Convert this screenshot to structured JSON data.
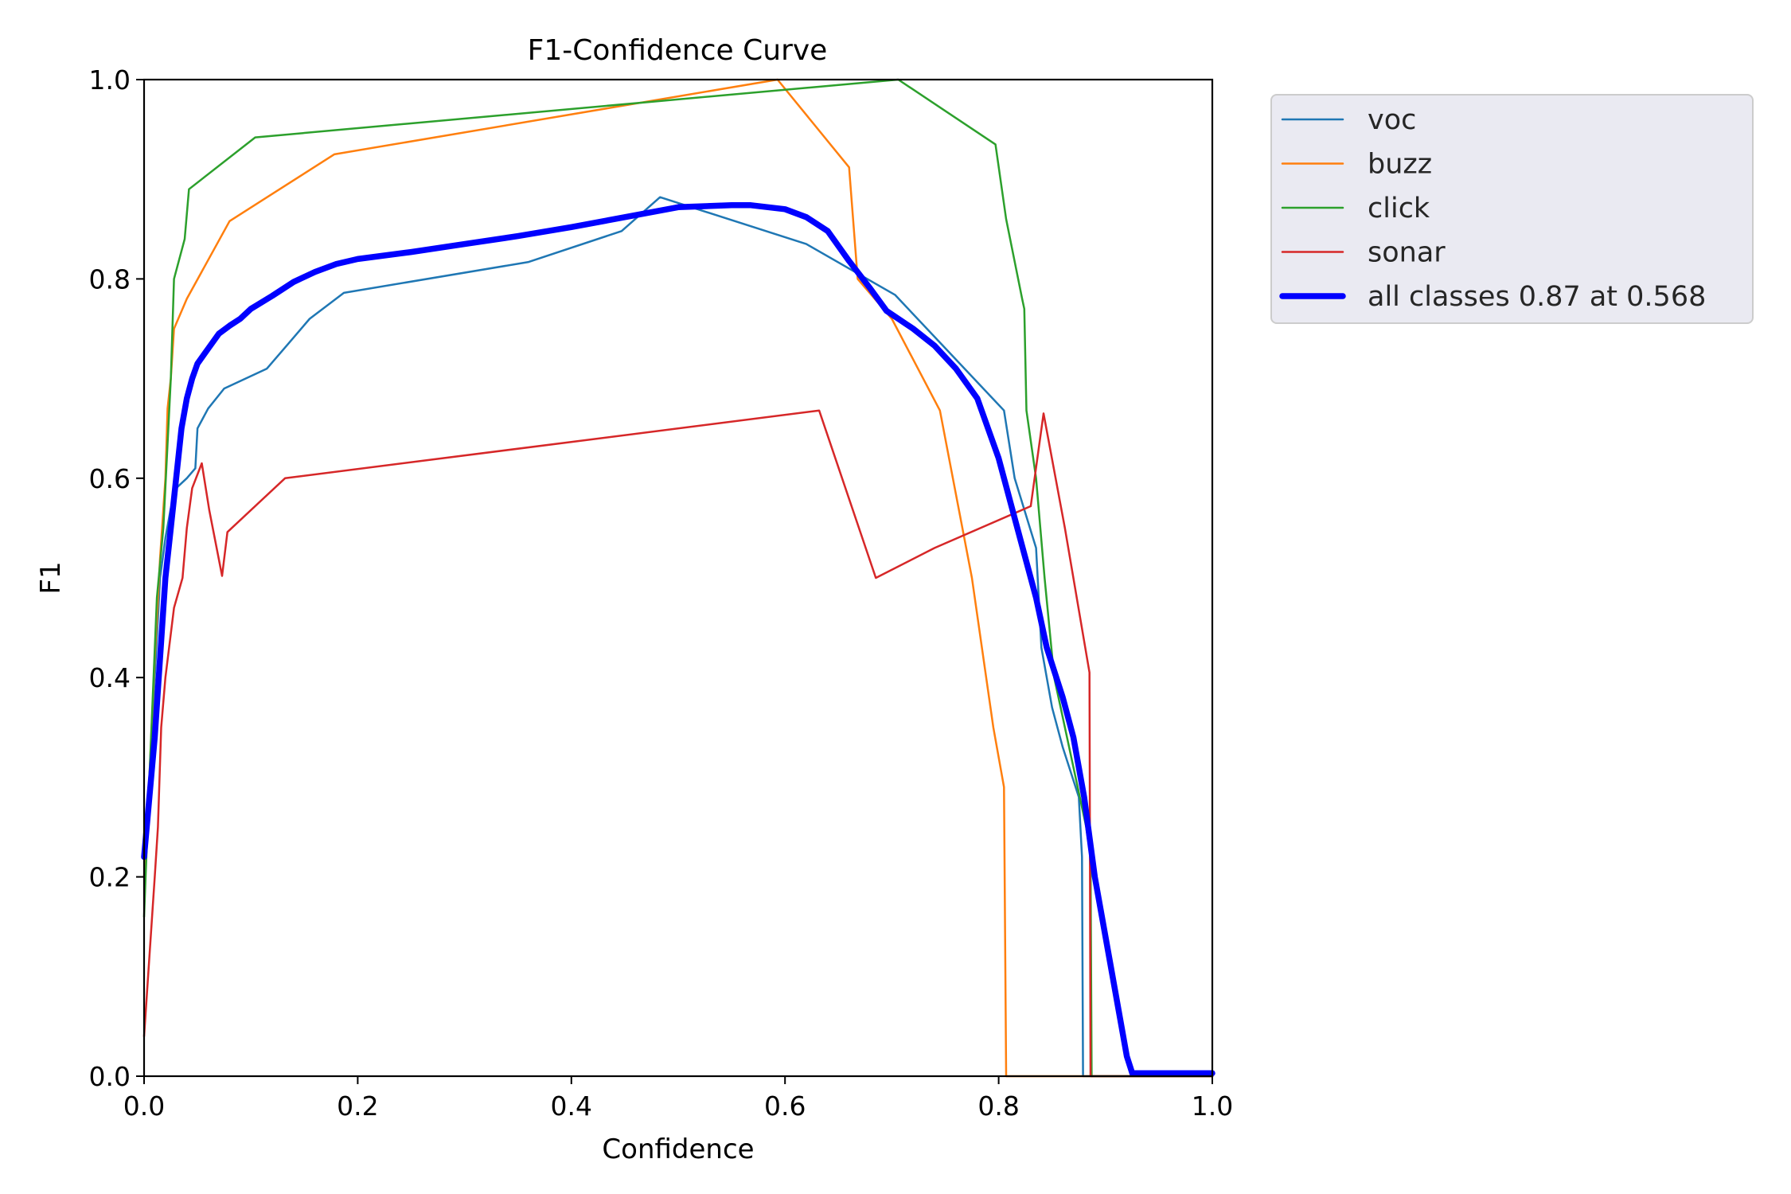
{
  "chart_data": {
    "type": "line",
    "title": "F1-Confidence Curve",
    "xlabel": "Confidence",
    "ylabel": "F1",
    "xlim": [
      0.0,
      1.0
    ],
    "ylim": [
      0.0,
      1.0
    ],
    "xticks": [
      "0.0",
      "0.2",
      "0.4",
      "0.6",
      "0.8",
      "1.0"
    ],
    "yticks": [
      "0.0",
      "0.2",
      "0.4",
      "0.6",
      "0.8",
      "1.0"
    ],
    "grid": false,
    "legend_position": "outside-top-right",
    "series": [
      {
        "name": "voc",
        "color": "#1f77b4",
        "width": "thin",
        "points": [
          [
            0.0,
            0.23
          ],
          [
            0.005,
            0.3
          ],
          [
            0.01,
            0.4
          ],
          [
            0.015,
            0.5
          ],
          [
            0.02,
            0.54
          ],
          [
            0.025,
            0.57
          ],
          [
            0.03,
            0.59
          ],
          [
            0.04,
            0.6
          ],
          [
            0.048,
            0.61
          ],
          [
            0.05,
            0.65
          ],
          [
            0.06,
            0.67
          ],
          [
            0.075,
            0.69
          ],
          [
            0.115,
            0.71
          ],
          [
            0.135,
            0.735
          ],
          [
            0.155,
            0.76
          ],
          [
            0.187,
            0.786
          ],
          [
            0.36,
            0.817
          ],
          [
            0.447,
            0.848
          ],
          [
            0.483,
            0.882
          ],
          [
            0.62,
            0.835
          ],
          [
            0.703,
            0.784
          ],
          [
            0.805,
            0.668
          ],
          [
            0.815,
            0.6
          ],
          [
            0.835,
            0.53
          ],
          [
            0.84,
            0.43
          ],
          [
            0.85,
            0.37
          ],
          [
            0.86,
            0.33
          ],
          [
            0.875,
            0.28
          ],
          [
            0.878,
            0.22
          ],
          [
            0.879,
            0.0
          ],
          [
            1.0,
            0.0
          ]
        ]
      },
      {
        "name": "buzz",
        "color": "#ff7f0e",
        "width": "thin",
        "points": [
          [
            0.0,
            0.2
          ],
          [
            0.005,
            0.3
          ],
          [
            0.01,
            0.42
          ],
          [
            0.015,
            0.52
          ],
          [
            0.02,
            0.6
          ],
          [
            0.022,
            0.67
          ],
          [
            0.025,
            0.7
          ],
          [
            0.028,
            0.75
          ],
          [
            0.04,
            0.78
          ],
          [
            0.08,
            0.858
          ],
          [
            0.178,
            0.925
          ],
          [
            0.593,
            1.0
          ],
          [
            0.66,
            0.912
          ],
          [
            0.668,
            0.8
          ],
          [
            0.7,
            0.76
          ],
          [
            0.745,
            0.668
          ],
          [
            0.775,
            0.5
          ],
          [
            0.795,
            0.35
          ],
          [
            0.805,
            0.29
          ],
          [
            0.807,
            0.0
          ],
          [
            1.0,
            0.0
          ]
        ]
      },
      {
        "name": "click",
        "color": "#2ca02c",
        "width": "thin",
        "points": [
          [
            0.0,
            0.16
          ],
          [
            0.005,
            0.3
          ],
          [
            0.012,
            0.48
          ],
          [
            0.018,
            0.55
          ],
          [
            0.025,
            0.7
          ],
          [
            0.028,
            0.8
          ],
          [
            0.038,
            0.84
          ],
          [
            0.042,
            0.89
          ],
          [
            0.104,
            0.942
          ],
          [
            0.706,
            1.0
          ],
          [
            0.797,
            0.935
          ],
          [
            0.807,
            0.86
          ],
          [
            0.822,
            0.78
          ],
          [
            0.824,
            0.77
          ],
          [
            0.826,
            0.668
          ],
          [
            0.835,
            0.6
          ],
          [
            0.843,
            0.5
          ],
          [
            0.852,
            0.4
          ],
          [
            0.872,
            0.3
          ],
          [
            0.882,
            0.25
          ],
          [
            0.886,
            0.22
          ],
          [
            0.887,
            0.0
          ],
          [
            1.0,
            0.0
          ]
        ]
      },
      {
        "name": "sonar",
        "color": "#d62728",
        "width": "thin",
        "points": [
          [
            0.0,
            0.04
          ],
          [
            0.005,
            0.12
          ],
          [
            0.01,
            0.2
          ],
          [
            0.013,
            0.25
          ],
          [
            0.016,
            0.35
          ],
          [
            0.02,
            0.4
          ],
          [
            0.028,
            0.47
          ],
          [
            0.036,
            0.5
          ],
          [
            0.04,
            0.55
          ],
          [
            0.045,
            0.59
          ],
          [
            0.054,
            0.615
          ],
          [
            0.061,
            0.568
          ],
          [
            0.073,
            0.502
          ],
          [
            0.078,
            0.546
          ],
          [
            0.132,
            0.6
          ],
          [
            0.632,
            0.668
          ],
          [
            0.685,
            0.5
          ],
          [
            0.74,
            0.53
          ],
          [
            0.83,
            0.572
          ],
          [
            0.842,
            0.665
          ],
          [
            0.862,
            0.55
          ],
          [
            0.885,
            0.405
          ],
          [
            0.886,
            0.0
          ],
          [
            1.0,
            0.0
          ]
        ]
      },
      {
        "name": "all classes 0.87 at 0.568",
        "color": "#0000ff",
        "width": "thick",
        "points": [
          [
            0.0,
            0.22
          ],
          [
            0.005,
            0.28
          ],
          [
            0.01,
            0.34
          ],
          [
            0.015,
            0.42
          ],
          [
            0.02,
            0.5
          ],
          [
            0.025,
            0.55
          ],
          [
            0.03,
            0.6
          ],
          [
            0.035,
            0.65
          ],
          [
            0.04,
            0.68
          ],
          [
            0.045,
            0.7
          ],
          [
            0.05,
            0.715
          ],
          [
            0.06,
            0.73
          ],
          [
            0.07,
            0.745
          ],
          [
            0.08,
            0.753
          ],
          [
            0.09,
            0.76
          ],
          [
            0.1,
            0.77
          ],
          [
            0.12,
            0.783
          ],
          [
            0.14,
            0.797
          ],
          [
            0.16,
            0.807
          ],
          [
            0.18,
            0.815
          ],
          [
            0.2,
            0.82
          ],
          [
            0.25,
            0.827
          ],
          [
            0.3,
            0.835
          ],
          [
            0.35,
            0.843
          ],
          [
            0.4,
            0.852
          ],
          [
            0.45,
            0.862
          ],
          [
            0.5,
            0.872
          ],
          [
            0.55,
            0.874
          ],
          [
            0.568,
            0.874
          ],
          [
            0.6,
            0.87
          ],
          [
            0.62,
            0.862
          ],
          [
            0.64,
            0.848
          ],
          [
            0.66,
            0.818
          ],
          [
            0.68,
            0.79
          ],
          [
            0.695,
            0.768
          ],
          [
            0.72,
            0.75
          ],
          [
            0.74,
            0.733
          ],
          [
            0.76,
            0.71
          ],
          [
            0.78,
            0.68
          ],
          [
            0.8,
            0.62
          ],
          [
            0.82,
            0.54
          ],
          [
            0.835,
            0.48
          ],
          [
            0.845,
            0.43
          ],
          [
            0.86,
            0.38
          ],
          [
            0.87,
            0.34
          ],
          [
            0.88,
            0.28
          ],
          [
            0.89,
            0.2
          ],
          [
            0.9,
            0.14
          ],
          [
            0.91,
            0.08
          ],
          [
            0.915,
            0.05
          ],
          [
            0.92,
            0.02
          ],
          [
            0.925,
            0.003
          ],
          [
            1.0,
            0.003
          ]
        ]
      }
    ]
  }
}
